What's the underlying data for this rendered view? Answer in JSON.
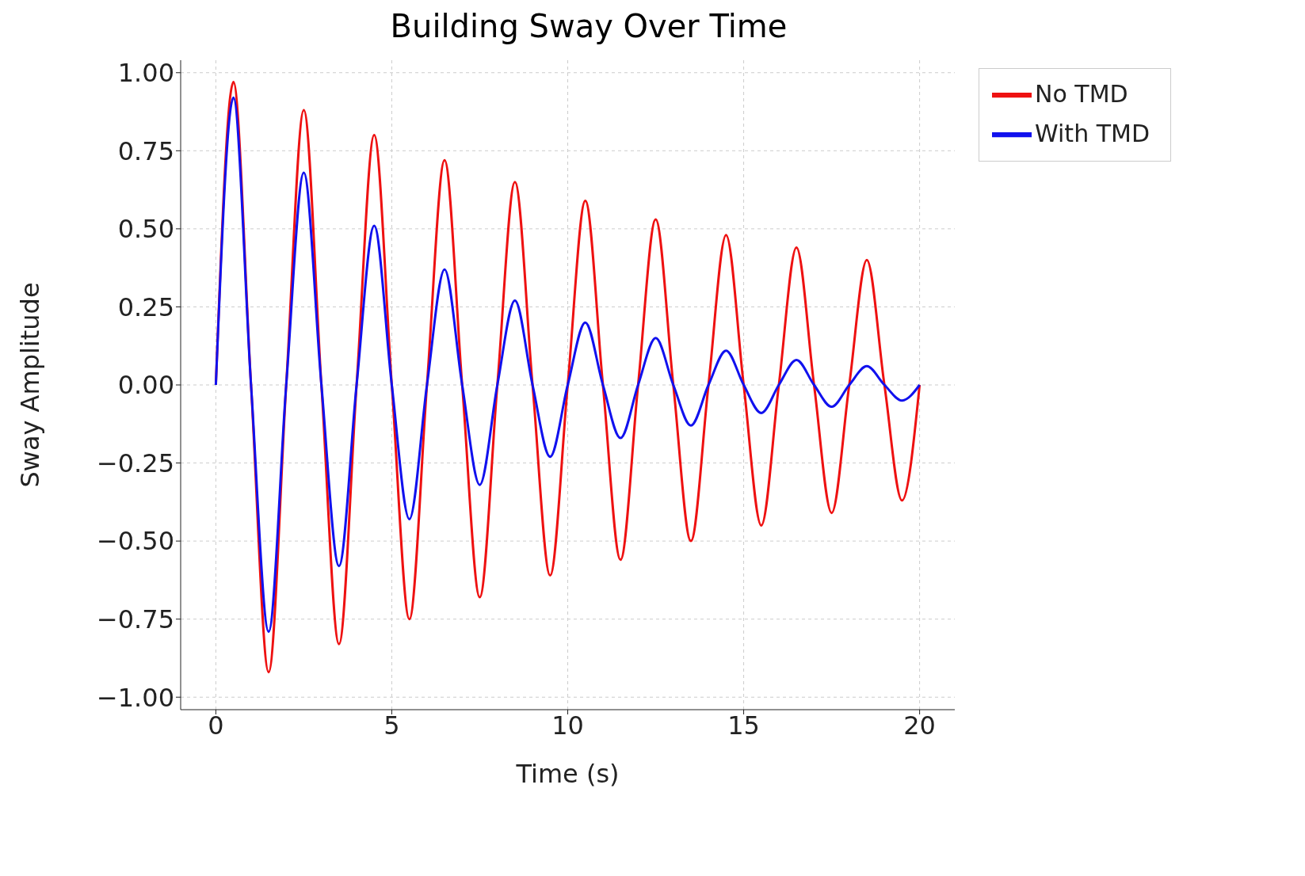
{
  "chart_data": {
    "type": "line",
    "title": "Building Sway Over Time",
    "xlabel": "Time (s)",
    "ylabel": "Sway Amplitude",
    "x": [
      0,
      0.5,
      1,
      1.5,
      2,
      2.5,
      3,
      3.5,
      4,
      4.5,
      5,
      5.5,
      6,
      6.5,
      7,
      7.5,
      8,
      8.5,
      9,
      9.5,
      10,
      10.5,
      11,
      11.5,
      12,
      12.5,
      13,
      13.5,
      14,
      14.5,
      15,
      15.5,
      16,
      16.5,
      17,
      17.5,
      18,
      18.5,
      19,
      19.5,
      20
    ],
    "series": [
      {
        "name": "No TMD",
        "color": "#ee1111",
        "values": [
          0,
          0.97,
          0,
          -0.92,
          0,
          0.88,
          0,
          -0.83,
          0,
          0.8,
          0,
          -0.75,
          0,
          0.72,
          0,
          -0.68,
          0,
          0.65,
          0,
          -0.61,
          0,
          0.59,
          0,
          -0.56,
          0,
          0.53,
          0,
          -0.5,
          0,
          0.48,
          0,
          -0.45,
          0,
          0.44,
          0,
          -0.41,
          0,
          0.4,
          0,
          -0.37,
          0
        ]
      },
      {
        "name": "With TMD",
        "color": "#1111ee",
        "values": [
          0,
          0.92,
          0,
          -0.79,
          0,
          0.68,
          0,
          -0.58,
          0,
          0.51,
          0,
          -0.43,
          0,
          0.37,
          0,
          -0.32,
          0,
          0.27,
          0,
          -0.23,
          0,
          0.2,
          0,
          -0.17,
          0,
          0.15,
          0,
          -0.13,
          0,
          0.11,
          0,
          -0.09,
          0,
          0.08,
          0,
          -0.07,
          0,
          0.06,
          0,
          -0.05,
          0
        ]
      }
    ],
    "xlim": [
      -1,
      21
    ],
    "xticks": [
      0,
      5,
      10,
      15,
      20
    ],
    "ylim": [
      -1.04,
      1.04
    ],
    "yticks": [
      {
        "value": -1,
        "label": "−1.00"
      },
      {
        "value": -0.75,
        "label": "−0.75"
      },
      {
        "value": -0.5,
        "label": "−0.50"
      },
      {
        "value": -0.25,
        "label": "−0.25"
      },
      {
        "value": 0,
        "label": "0.00"
      },
      {
        "value": 0.25,
        "label": "0.25"
      },
      {
        "value": 0.5,
        "label": "0.50"
      },
      {
        "value": 0.75,
        "label": "0.75"
      },
      {
        "value": 1,
        "label": "1.00"
      }
    ],
    "grid": true,
    "legend": "top right",
    "marker": "none",
    "line_style": "solid"
  }
}
